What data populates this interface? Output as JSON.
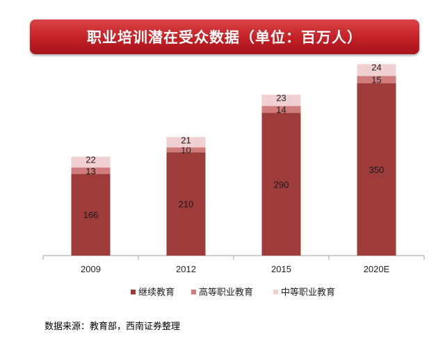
{
  "title": "职业培训潜在受众数据（单位：百万人）",
  "source": "数据来源：教育部，西南证券整理",
  "colors": {
    "title_bg": "#c32026",
    "s1": "#9e3b3b",
    "s2": "#d07b7c",
    "s3": "#f0d0d0",
    "axis": "#a0a0a0"
  },
  "chart_data": {
    "type": "bar",
    "stacked": true,
    "title": "",
    "xlabel": "",
    "ylabel": "",
    "categories": [
      "2009",
      "2012",
      "2015",
      "2020E"
    ],
    "series": [
      {
        "name": "继续教育",
        "values": [
          166,
          210,
          290,
          350
        ],
        "color": "#9e3b3b"
      },
      {
        "name": "高等职业教育",
        "values": [
          13,
          10,
          14,
          15
        ],
        "color": "#d07b7c"
      },
      {
        "name": "中等职业教育",
        "values": [
          22,
          21,
          23,
          24
        ],
        "color": "#f0d0d0"
      }
    ],
    "ylim": [
      0,
      400
    ],
    "grid": false,
    "legend": "bottom"
  }
}
